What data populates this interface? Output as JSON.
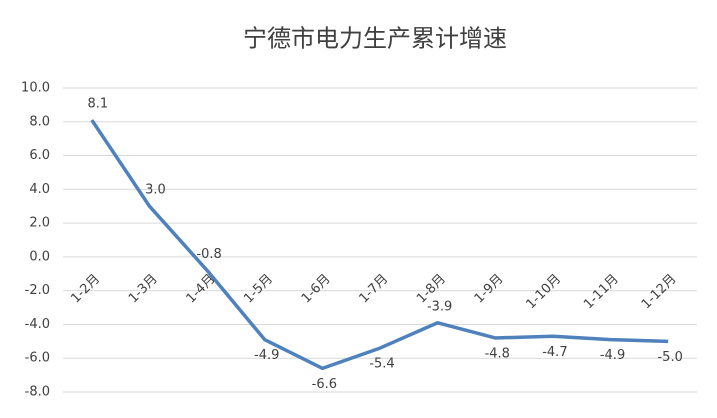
{
  "chart_data": {
    "type": "line",
    "title": "宁德市电力生产累计增速",
    "categories": [
      "1-2月",
      "1-3月",
      "1-4月",
      "1-5月",
      "1-6月",
      "1-7月",
      "1-8月",
      "1-9月",
      "1-10月",
      "1-11月",
      "1-12月"
    ],
    "values": [
      8.1,
      3.0,
      -0.8,
      -4.9,
      -6.6,
      -5.4,
      -3.9,
      -4.8,
      -4.7,
      -4.9,
      -5.0
    ],
    "value_labels": [
      "8.1",
      "3.0",
      "-0.8",
      "-4.9",
      "-6.6",
      "-5.4",
      "-3.9",
      "-4.8",
      "-4.7",
      "-4.9",
      "-5.0"
    ],
    "color": "#4f81bd",
    "ylim": [
      -8,
      10
    ],
    "yticks": [
      {
        "value": 10,
        "label": "10.0"
      },
      {
        "value": 8,
        "label": "8.0"
      },
      {
        "value": 6,
        "label": "6.0"
      },
      {
        "value": 4,
        "label": "4.0"
      },
      {
        "value": 2,
        "label": "2.0"
      },
      {
        "value": 0,
        "label": "0.0"
      },
      {
        "value": -2,
        "label": "-2.0"
      },
      {
        "value": -4,
        "label": "-4.0"
      },
      {
        "value": -6,
        "label": "-6.0"
      },
      {
        "value": -8,
        "label": "-8.0"
      }
    ],
    "grid": true
  }
}
